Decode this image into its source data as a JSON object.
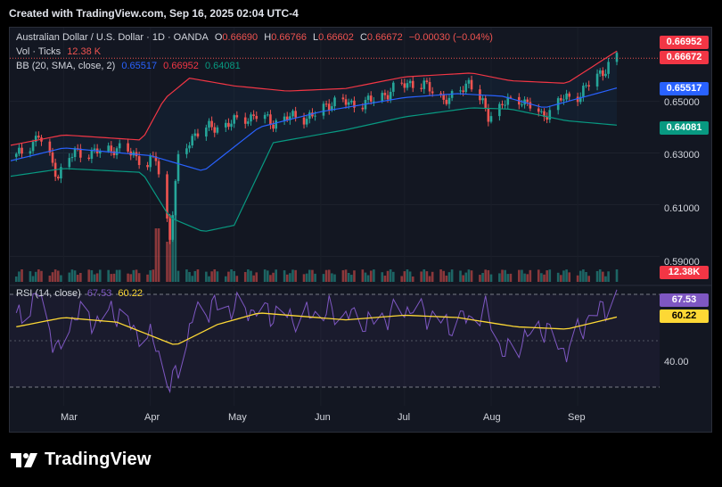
{
  "header": {
    "created_line": "Created with TradingView.com, Sep 16, 2025 02:04 UTC-4"
  },
  "legend": {
    "symbol": "Australian Dollar / U.S. Dollar · 1D · OANDA",
    "o_label": "O",
    "o_value": "0.66690",
    "h_label": "H",
    "h_value": "0.66766",
    "l_label": "L",
    "l_value": "0.66602",
    "c_label": "C",
    "c_value": "0.66672",
    "change": "−0.00030 (−0.04%)",
    "vol_label": "Vol · Ticks",
    "vol_value": "12.38 K",
    "bb_label": "BB (20, SMA, close, 2)",
    "bb_basis": "0.65517",
    "bb_upper": "0.66952",
    "bb_lower": "0.64081",
    "rsi_label": "RSI (14, close)",
    "rsi_value": "67.53",
    "rsi_ma": "60.22"
  },
  "price_axis": {
    "ticks": [
      "0.65000",
      "0.63000",
      "0.61000",
      "0.59000"
    ],
    "badges": {
      "upper": "0.66952",
      "close": "0.66672",
      "basis": "0.65517",
      "lower": "0.64081",
      "volume": "12.38K"
    }
  },
  "rsi_axis": {
    "ticks": [
      "40.00"
    ],
    "badges": {
      "rsi": "67.53",
      "rsi_ma": "60.22"
    }
  },
  "time_axis": {
    "labels": [
      "Mar",
      "Apr",
      "May",
      "Jun",
      "Jul",
      "Aug",
      "Sep"
    ]
  },
  "colors": {
    "up": "#26a69a",
    "down": "#ef5350",
    "bb_basis": "#2962ff",
    "bb_upper": "#f23645",
    "bb_lower": "#089981",
    "rsi": "#7e57c2",
    "rsi_ma": "#fdd835",
    "background": "#131722"
  },
  "footer": {
    "brand": "TradingView"
  },
  "chart_data": [
    {
      "type": "candlestick",
      "title": "Australian Dollar / U.S. Dollar · 1D · OANDA",
      "x_range": [
        "2025-02-10",
        "2025-09-15"
      ],
      "ylim": [
        0.587,
        0.672
      ],
      "close_anchors": {
        "dates": [
          "2025-02-12",
          "2025-02-20",
          "2025-02-27",
          "2025-03-05",
          "2025-03-12",
          "2025-03-19",
          "2025-03-26",
          "2025-03-31",
          "2025-04-03",
          "2025-04-08",
          "2025-04-11",
          "2025-04-17",
          "2025-04-24",
          "2025-05-01",
          "2025-05-08",
          "2025-05-15",
          "2025-05-22",
          "2025-05-29",
          "2025-06-05",
          "2025-06-12",
          "2025-06-19",
          "2025-06-26",
          "2025-07-03",
          "2025-07-10",
          "2025-07-17",
          "2025-07-24",
          "2025-07-31",
          "2025-08-05",
          "2025-08-12",
          "2025-08-19",
          "2025-08-26",
          "2025-09-02",
          "2025-09-09",
          "2025-09-15"
        ],
        "values": [
          0.6285,
          0.6365,
          0.6215,
          0.6305,
          0.63,
          0.632,
          0.6295,
          0.6255,
          0.628,
          0.598,
          0.627,
          0.638,
          0.64,
          0.642,
          0.6445,
          0.642,
          0.644,
          0.644,
          0.65,
          0.649,
          0.65,
          0.654,
          0.6575,
          0.655,
          0.65,
          0.658,
          0.6445,
          0.649,
          0.651,
          0.644,
          0.6505,
          0.653,
          0.661,
          0.6667
        ]
      }
    },
    {
      "type": "line",
      "title": "BB (20, SMA, close, 2)",
      "series": [
        {
          "name": "basis",
          "dates": [
            "2025-02-10",
            "2025-03-01",
            "2025-04-01",
            "2025-04-20",
            "2025-05-10",
            "2025-06-01",
            "2025-07-01",
            "2025-07-20",
            "2025-08-05",
            "2025-08-20",
            "2025-09-15"
          ],
          "values": [
            0.627,
            0.632,
            0.629,
            0.623,
            0.64,
            0.646,
            0.6515,
            0.653,
            0.652,
            0.6475,
            0.6552
          ]
        },
        {
          "name": "upper",
          "dates": [
            "2025-02-10",
            "2025-03-01",
            "2025-03-29",
            "2025-04-06",
            "2025-04-15",
            "2025-05-01",
            "2025-05-20",
            "2025-06-10",
            "2025-07-01",
            "2025-07-25",
            "2025-08-08",
            "2025-08-28",
            "2025-09-15"
          ],
          "values": [
            0.633,
            0.637,
            0.635,
            0.651,
            0.659,
            0.656,
            0.654,
            0.655,
            0.6595,
            0.661,
            0.658,
            0.657,
            0.6695
          ]
        },
        {
          "name": "lower",
          "dates": [
            "2025-02-10",
            "2025-03-01",
            "2025-03-29",
            "2025-04-08",
            "2025-04-20",
            "2025-05-01",
            "2025-05-15",
            "2025-06-10",
            "2025-07-01",
            "2025-07-25",
            "2025-08-08",
            "2025-08-28",
            "2025-09-15"
          ],
          "values": [
            0.621,
            0.624,
            0.6225,
            0.605,
            0.5995,
            0.602,
            0.634,
            0.639,
            0.644,
            0.6475,
            0.647,
            0.6425,
            0.6408
          ]
        }
      ]
    },
    {
      "type": "bar",
      "title": "Vol · Ticks",
      "note": "volume histogram, last value 12.38 K",
      "spike_dates": [
        "2025-04-04",
        "2025-04-07",
        "2025-04-09"
      ]
    },
    {
      "type": "line",
      "title": "RSI (14, close)",
      "ylabel_ticks": [
        "40.00"
      ],
      "series": [
        {
          "name": "RSI",
          "dates": [
            "2025-02-12",
            "2025-02-20",
            "2025-02-27",
            "2025-03-05",
            "2025-03-12",
            "2025-03-19",
            "2025-03-26",
            "2025-04-03",
            "2025-04-08",
            "2025-04-17",
            "2025-04-24",
            "2025-05-08",
            "2025-05-22",
            "2025-06-05",
            "2025-06-19",
            "2025-07-03",
            "2025-07-17",
            "2025-07-31",
            "2025-08-05",
            "2025-08-19",
            "2025-08-28",
            "2025-09-05",
            "2025-09-15"
          ],
          "values": [
            59,
            70,
            44,
            62,
            58,
            63,
            55,
            49,
            28,
            62,
            65,
            63,
            60,
            63,
            58,
            64,
            57,
            63,
            44,
            56,
            45,
            60,
            67.53
          ]
        },
        {
          "name": "RSI MA",
          "dates": [
            "2025-02-12",
            "2025-03-01",
            "2025-03-20",
            "2025-04-10",
            "2025-04-25",
            "2025-05-10",
            "2025-06-10",
            "2025-07-01",
            "2025-07-20",
            "2025-08-10",
            "2025-08-28",
            "2025-09-15"
          ],
          "values": [
            56,
            60,
            58,
            48,
            57,
            62,
            59,
            61,
            60,
            56,
            55,
            60.22
          ]
        }
      ]
    }
  ]
}
